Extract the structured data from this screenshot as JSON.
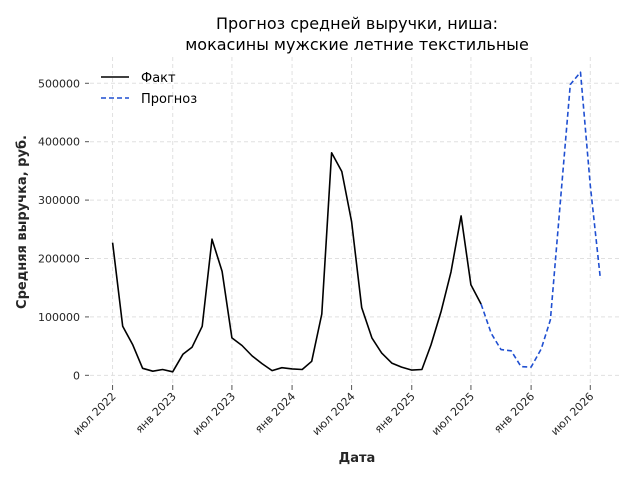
{
  "chart_data": {
    "type": "line",
    "title_line1": "Прогноз средней выручки, ниша:",
    "title_line2": "мокасины мужские летние текстильные",
    "xlabel": "Дата",
    "ylabel": "Средняя выручка, руб.",
    "ylim": [
      -20000,
      545000
    ],
    "y_ticks": [
      0,
      100000,
      200000,
      300000,
      400000,
      500000
    ],
    "x_ticks": [
      {
        "date": "2022-07-01",
        "label": "июл 2022"
      },
      {
        "date": "2023-01-01",
        "label": "янв 2023"
      },
      {
        "date": "2023-07-01",
        "label": "июл 2023"
      },
      {
        "date": "2024-01-01",
        "label": "янв 2024"
      },
      {
        "date": "2024-07-01",
        "label": "июл 2024"
      },
      {
        "date": "2025-01-01",
        "label": "янв 2025"
      },
      {
        "date": "2025-07-01",
        "label": "июл 2025"
      },
      {
        "date": "2026-01-01",
        "label": "янв 2026"
      },
      {
        "date": "2026-07-01",
        "label": "июл 2026"
      }
    ],
    "grid": true,
    "legend_position": "top-left",
    "series": [
      {
        "name": "Факт",
        "color": "#000000",
        "style": "solid",
        "points": [
          [
            "2022-07-01",
            227000
          ],
          [
            "2022-08-01",
            84000
          ],
          [
            "2022-09-01",
            52000
          ],
          [
            "2022-10-01",
            12000
          ],
          [
            "2022-11-01",
            7000
          ],
          [
            "2022-12-01",
            10000
          ],
          [
            "2023-01-01",
            6000
          ],
          [
            "2023-02-01",
            36000
          ],
          [
            "2023-03-01",
            48000
          ],
          [
            "2023-04-01",
            84000
          ],
          [
            "2023-05-01",
            233000
          ],
          [
            "2023-06-01",
            178000
          ],
          [
            "2023-07-01",
            64000
          ],
          [
            "2023-08-01",
            51000
          ],
          [
            "2023-09-01",
            33000
          ],
          [
            "2023-10-01",
            20000
          ],
          [
            "2023-11-01",
            8000
          ],
          [
            "2023-12-01",
            13000
          ],
          [
            "2024-01-01",
            11000
          ],
          [
            "2024-02-01",
            10000
          ],
          [
            "2024-03-01",
            24000
          ],
          [
            "2024-04-01",
            105000
          ],
          [
            "2024-05-01",
            381000
          ],
          [
            "2024-06-01",
            349000
          ],
          [
            "2024-07-01",
            263000
          ],
          [
            "2024-08-01",
            116000
          ],
          [
            "2024-09-01",
            64000
          ],
          [
            "2024-10-01",
            38000
          ],
          [
            "2024-11-01",
            21000
          ],
          [
            "2024-12-01",
            14000
          ],
          [
            "2025-01-01",
            9000
          ],
          [
            "2025-02-01",
            10000
          ],
          [
            "2025-03-01",
            52000
          ],
          [
            "2025-04-01",
            110000
          ],
          [
            "2025-05-01",
            177000
          ],
          [
            "2025-06-01",
            273000
          ],
          [
            "2025-07-01",
            155000
          ],
          [
            "2025-08-01",
            122000
          ]
        ]
      },
      {
        "name": "Прогноз",
        "color": "#1f4fd1",
        "style": "dashed",
        "points": [
          [
            "2025-08-01",
            122000
          ],
          [
            "2025-09-01",
            72000
          ],
          [
            "2025-10-01",
            44000
          ],
          [
            "2025-11-01",
            42000
          ],
          [
            "2025-12-01",
            15000
          ],
          [
            "2026-01-01",
            14000
          ],
          [
            "2026-02-01",
            45000
          ],
          [
            "2026-03-01",
            95000
          ],
          [
            "2026-04-01",
            300000
          ],
          [
            "2026-05-01",
            498000
          ],
          [
            "2026-06-01",
            519000
          ],
          [
            "2026-07-01",
            325000
          ],
          [
            "2026-08-01",
            165000
          ]
        ]
      }
    ]
  }
}
